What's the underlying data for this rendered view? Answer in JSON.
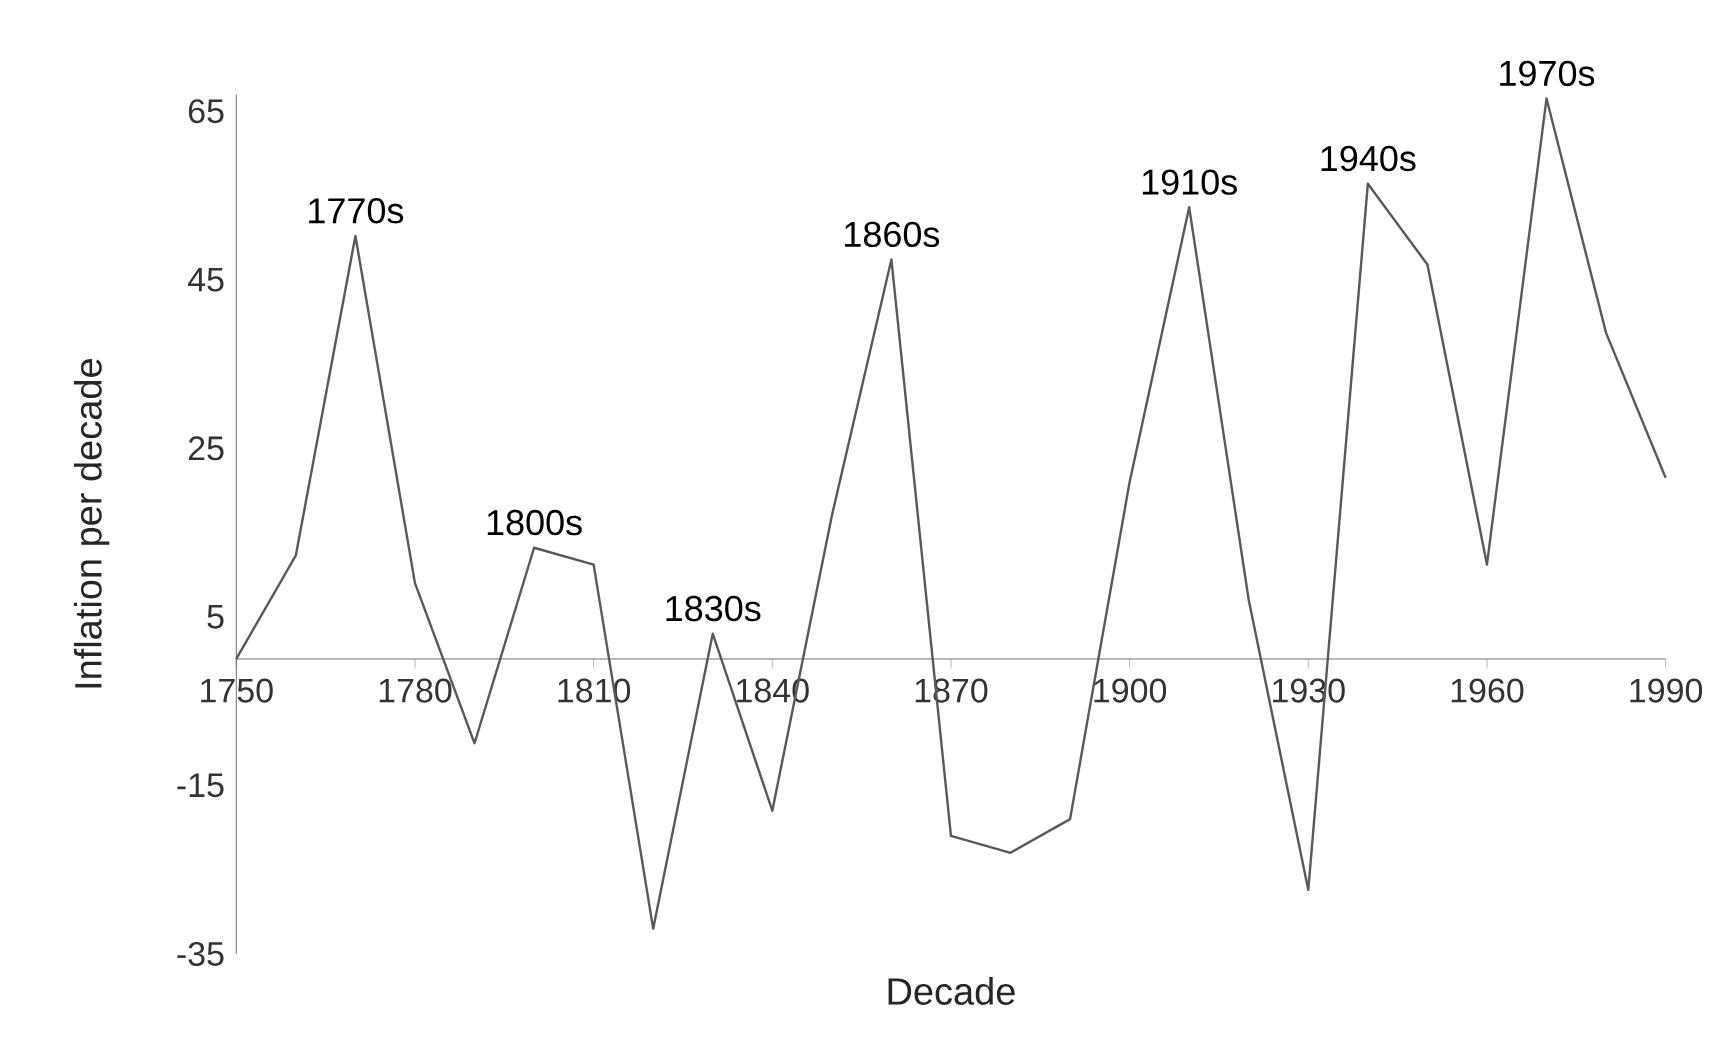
{
  "chart_data": {
    "type": "line",
    "xlabel": "Decade",
    "ylabel": "Inflation per decade",
    "x": [
      1750,
      1760,
      1770,
      1780,
      1790,
      1800,
      1810,
      1820,
      1830,
      1840,
      1850,
      1860,
      1870,
      1880,
      1890,
      1900,
      1910,
      1920,
      1930,
      1940,
      1950,
      1960,
      1970,
      1980,
      1990
    ],
    "series": [
      {
        "color": "#595959",
        "values": [
          0,
          12.3,
          50.2,
          9,
          -10,
          13.2,
          11.2,
          -32,
          3,
          -18,
          17,
          47.4,
          -21,
          -23,
          -19,
          21,
          53.6,
          7,
          -27.4,
          56.4,
          46.8,
          11.2,
          66.5,
          38.7,
          21.5
        ]
      }
    ],
    "xlim": [
      1750,
      1990
    ],
    "xticks": [
      1750,
      1780,
      1810,
      1840,
      1870,
      1900,
      1930,
      1960,
      1990
    ],
    "ylim": [
      -35,
      67
    ],
    "yticks": [
      -35,
      -15,
      5,
      25,
      45,
      65
    ],
    "annotations": [
      {
        "text": "1770s",
        "x": 1770,
        "y": 50.2
      },
      {
        "text": "1800s",
        "x": 1800,
        "y": 13.2
      },
      {
        "text": "1830s",
        "x": 1830,
        "y": 3
      },
      {
        "text": "1860s",
        "x": 1860,
        "y": 47.4
      },
      {
        "text": "1910s",
        "x": 1910,
        "y": 53.6
      },
      {
        "text": "1940s",
        "x": 1940,
        "y": 56.4
      },
      {
        "text": "1970s",
        "x": 1970,
        "y": 66.5
      }
    ],
    "grid": false,
    "marker": "none",
    "line_style": "solid"
  }
}
